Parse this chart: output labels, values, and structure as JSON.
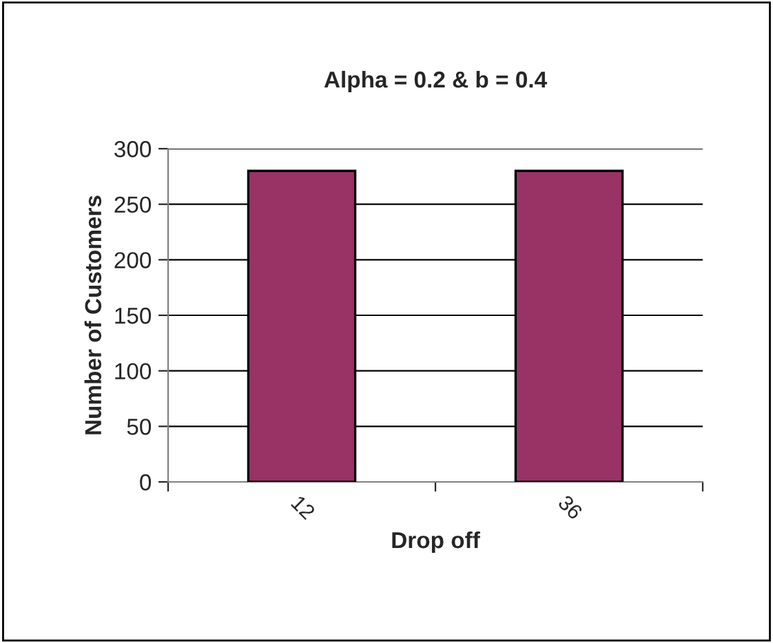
{
  "chart_data": {
    "type": "bar",
    "title": "Alpha = 0.2 & b = 0.4",
    "xlabel": "Drop off",
    "ylabel": "Number of Customers",
    "categories": [
      "12",
      "36"
    ],
    "series": [
      {
        "color": "#993366",
        "values": [
          280,
          280
        ]
      }
    ],
    "ylim": [
      0,
      300
    ],
    "yticks": [
      0,
      50,
      100,
      150,
      200,
      250,
      300
    ],
    "grid": "y",
    "legend": false
  }
}
